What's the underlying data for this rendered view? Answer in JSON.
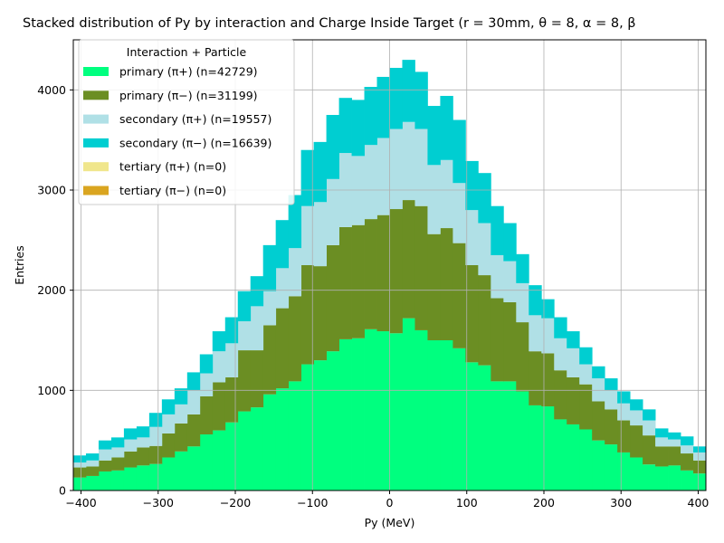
{
  "chart_data": {
    "type": "bar",
    "stacked": true,
    "title": "Stacked distribution of Py by interaction and Charge Inside Target (r = 30mm, θ = 8, α = 8, β",
    "xlabel": "Py (MeV)",
    "ylabel": "Entries",
    "xlim": [
      -410,
      410
    ],
    "ylim": [
      0,
      4500
    ],
    "xticks": [
      -400,
      -300,
      -200,
      -100,
      0,
      100,
      200,
      300,
      400
    ],
    "yticks": [
      0,
      1000,
      2000,
      3000,
      4000
    ],
    "grid": true,
    "legend": {
      "title": "Interaction + Particle",
      "placement": "top-left"
    },
    "bins": {
      "start": -410,
      "width": 16.4
    },
    "series": [
      {
        "name": "primary (π+) (n=42729)",
        "color": "#00ff7f",
        "values": [
          130,
          145,
          190,
          200,
          230,
          250,
          265,
          330,
          390,
          440,
          560,
          600,
          680,
          790,
          830,
          960,
          1020,
          1090,
          1260,
          1300,
          1390,
          1510,
          1520,
          1610,
          1590,
          1570,
          1720,
          1600,
          1500,
          1500,
          1420,
          1280,
          1250,
          1090,
          1090,
          990,
          850,
          840,
          710,
          660,
          610,
          500,
          460,
          380,
          330,
          260,
          240,
          250,
          200,
          170
        ]
      },
      {
        "name": "primary (π−) (n=31199)",
        "color": "#6b8e23",
        "values": [
          100,
          95,
          110,
          130,
          160,
          180,
          180,
          240,
          280,
          320,
          380,
          480,
          450,
          610,
          570,
          690,
          800,
          850,
          990,
          940,
          1060,
          1120,
          1130,
          1100,
          1160,
          1240,
          1180,
          1240,
          1060,
          1120,
          1050,
          970,
          900,
          830,
          790,
          690,
          540,
          530,
          490,
          470,
          450,
          390,
          350,
          320,
          320,
          290,
          200,
          190,
          170,
          130
        ]
      },
      {
        "name": "secondary (π+) (n=19557)",
        "color": "#b0e0e6",
        "values": [
          50,
          60,
          110,
          100,
          120,
          100,
          190,
          190,
          190,
          240,
          230,
          310,
          340,
          290,
          440,
          340,
          400,
          480,
          590,
          640,
          660,
          740,
          690,
          740,
          770,
          800,
          780,
          770,
          690,
          680,
          600,
          550,
          520,
          430,
          410,
          390,
          360,
          350,
          320,
          290,
          200,
          230,
          190,
          170,
          150,
          150,
          90,
          70,
          80,
          80
        ]
      },
      {
        "name": "secondary (π−) (n=16639)",
        "color": "#00ced1",
        "values": [
          70,
          70,
          90,
          100,
          110,
          110,
          140,
          150,
          160,
          180,
          190,
          200,
          260,
          300,
          300,
          460,
          480,
          530,
          560,
          600,
          640,
          550,
          560,
          580,
          610,
          610,
          620,
          570,
          590,
          640,
          630,
          490,
          500,
          490,
          380,
          290,
          300,
          190,
          210,
          170,
          170,
          120,
          120,
          120,
          110,
          110,
          90,
          70,
          90,
          60
        ]
      },
      {
        "name": "tertiary (π+) (n=0)",
        "color": "#f0e68c",
        "values": []
      },
      {
        "name": "tertiary (π−) (n=0)",
        "color": "#daa520",
        "values": []
      }
    ]
  }
}
